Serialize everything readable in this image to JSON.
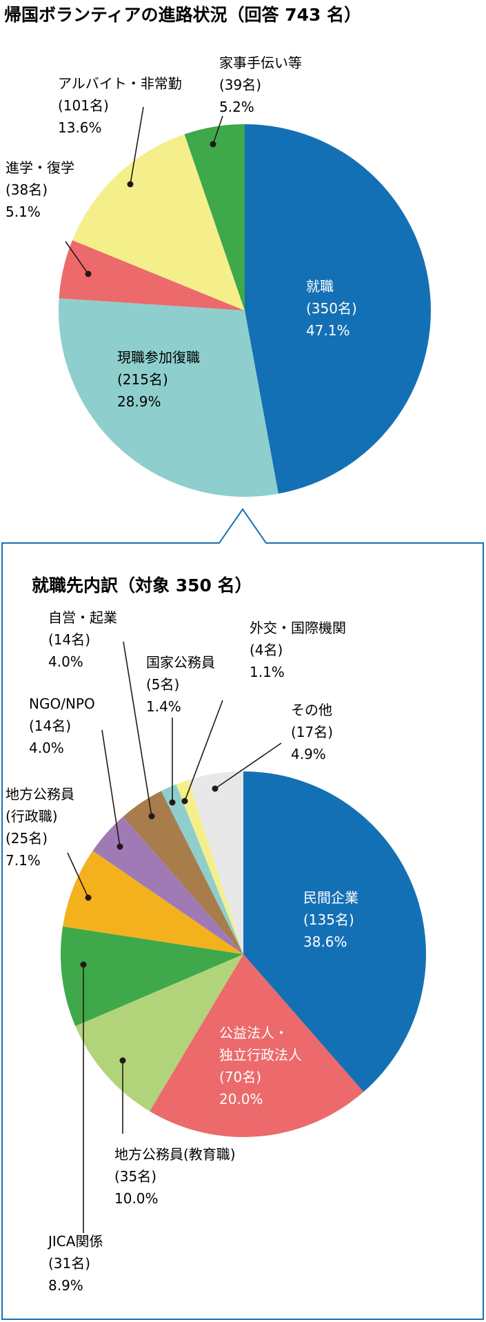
{
  "chart_data": [
    {
      "type": "pie",
      "title": "帰国ボランティアの進路状況（回答 743 名）",
      "unit": "名",
      "slices": [
        {
          "name": "就職",
          "count": "(350名)",
          "percent": "47.1%",
          "value": 350,
          "color": "#1470b5"
        },
        {
          "name": "現職参加復職",
          "count": "(215名)",
          "percent": "28.9%",
          "value": 215,
          "color": "#8ecfcd"
        },
        {
          "name": "進学・復学",
          "count": "(38名)",
          "percent": "5.1%",
          "value": 38,
          "color": "#ec6a6b"
        },
        {
          "name": "アルバイト・非常勤",
          "count": "(101名)",
          "percent": "13.6%",
          "value": 101,
          "color": "#f4ef8b"
        },
        {
          "name": "家事手伝い等",
          "count": "(39名)",
          "percent": "5.2%",
          "value": 39,
          "color": "#3ea84a"
        }
      ]
    },
    {
      "type": "pie",
      "title": "就職先内訳（対象 350 名）",
      "unit": "名",
      "slices": [
        {
          "name": "民間企業",
          "count": "(135名)",
          "percent": "38.6%",
          "value": 135,
          "color": "#1470b5"
        },
        {
          "name": "公益法人・\n独立行政法人",
          "count": "(70名)",
          "percent": "20.0%",
          "value": 70,
          "color": "#ec6a6b"
        },
        {
          "name": "地方公務員(教育職)",
          "count": "(35名)",
          "percent": "10.0%",
          "value": 35,
          "color": "#b1d47a"
        },
        {
          "name": "JICA関係",
          "count": "(31名)",
          "percent": "8.9%",
          "value": 31,
          "color": "#3ea84a"
        },
        {
          "name": "地方公務員\n(行政職)",
          "count": "(25名)",
          "percent": "7.1%",
          "value": 25,
          "color": "#f3b21d"
        },
        {
          "name": "NGO/NPO",
          "count": "(14名)",
          "percent": "4.0%",
          "value": 14,
          "color": "#a07ab5"
        },
        {
          "name": "自営・起業",
          "count": "(14名)",
          "percent": "4.0%",
          "value": 14,
          "color": "#a87c4b"
        },
        {
          "name": "国家公務員",
          "count": "(5名)",
          "percent": "1.4%",
          "value": 5,
          "color": "#8ecfcd"
        },
        {
          "name": "外交・国際機関",
          "count": "(4名)",
          "percent": "1.1%",
          "value": 4,
          "color": "#f4ef8b"
        },
        {
          "name": "その他",
          "count": "(17名)",
          "percent": "4.9%",
          "value": 17,
          "color": "#e8e8e8"
        }
      ]
    }
  ]
}
